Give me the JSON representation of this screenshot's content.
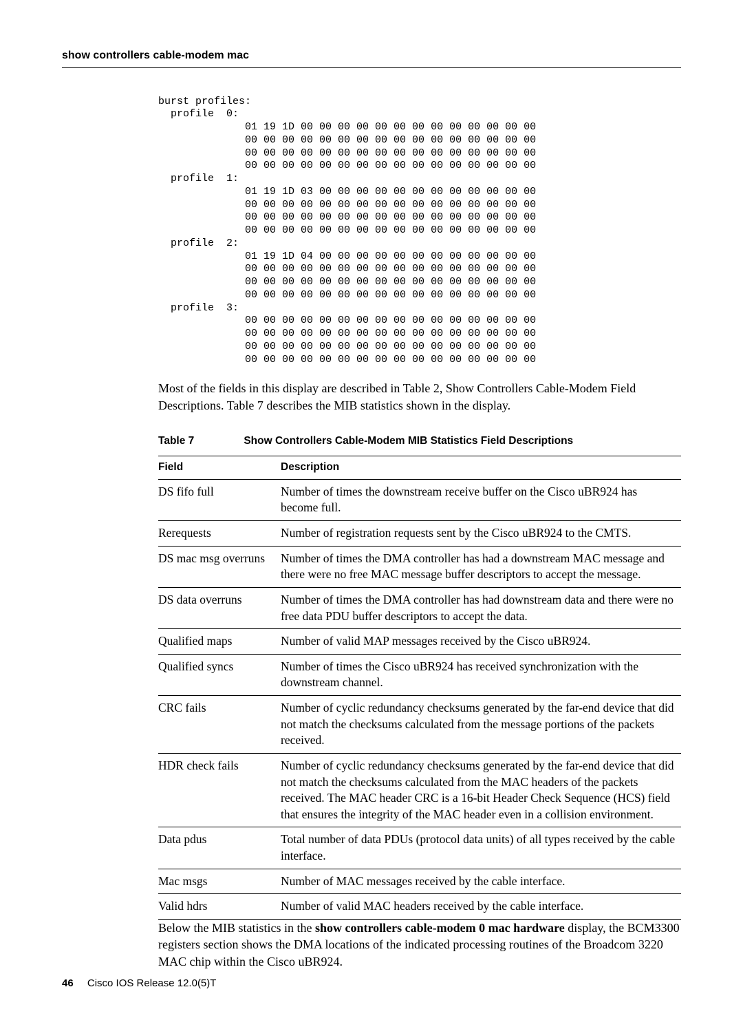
{
  "page": {
    "running_head": "show controllers cable-modem mac",
    "footer_page": "46",
    "footer_text": "Cisco IOS Release 12.0(5)T"
  },
  "hex": {
    "header": "burst profiles:",
    "profiles": [
      {
        "label": "  profile  0:",
        "lines": [
          "01 19 1D 00 00 00 00 00 00 00 00 00 00 00 00 00",
          "00 00 00 00 00 00 00 00 00 00 00 00 00 00 00 00",
          "00 00 00 00 00 00 00 00 00 00 00 00 00 00 00 00",
          "00 00 00 00 00 00 00 00 00 00 00 00 00 00 00 00"
        ]
      },
      {
        "label": "  profile  1:",
        "lines": [
          "01 19 1D 03 00 00 00 00 00 00 00 00 00 00 00 00",
          "00 00 00 00 00 00 00 00 00 00 00 00 00 00 00 00",
          "00 00 00 00 00 00 00 00 00 00 00 00 00 00 00 00",
          "00 00 00 00 00 00 00 00 00 00 00 00 00 00 00 00"
        ]
      },
      {
        "label": "  profile  2:",
        "lines": [
          "01 19 1D 04 00 00 00 00 00 00 00 00 00 00 00 00",
          "00 00 00 00 00 00 00 00 00 00 00 00 00 00 00 00",
          "00 00 00 00 00 00 00 00 00 00 00 00 00 00 00 00",
          "00 00 00 00 00 00 00 00 00 00 00 00 00 00 00 00"
        ]
      },
      {
        "label": "  profile  3:",
        "lines": [
          "00 00 00 00 00 00 00 00 00 00 00 00 00 00 00 00",
          "00 00 00 00 00 00 00 00 00 00 00 00 00 00 00 00",
          "00 00 00 00 00 00 00 00 00 00 00 00 00 00 00 00",
          "00 00 00 00 00 00 00 00 00 00 00 00 00 00 00 00"
        ]
      }
    ],
    "line_indent": "              "
  },
  "intro_para": "Most of the fields in this display are described in Table 2, Show Controllers Cable-Modem Field Descriptions. Table 7 describes the MIB statistics shown in the display.",
  "table": {
    "number": "Table 7",
    "title": "Show Controllers Cable-Modem  MIB Statistics Field Descriptions",
    "head_field": "Field",
    "head_desc": "Description",
    "rows": [
      {
        "field": "DS fifo full",
        "desc": "Number of times the downstream receive buffer on the Cisco uBR924 has become full."
      },
      {
        "field": "Rerequests",
        "desc": "Number of registration requests sent by the Cisco uBR924 to the CMTS."
      },
      {
        "field": "DS mac msg overruns",
        "desc": "Number of times the DMA controller has had a downstream MAC message and there were no free MAC message buffer descriptors to accept the message."
      },
      {
        "field": "DS data overruns",
        "desc": "Number of times the DMA controller has had downstream data and there were no free data PDU buffer descriptors to accept the data."
      },
      {
        "field": "Qualified maps",
        "desc": "Number of valid MAP messages received by the Cisco uBR924."
      },
      {
        "field": "Qualified syncs",
        "desc": "Number of times the Cisco uBR924 has received synchronization with the downstream channel."
      },
      {
        "field": "CRC fails",
        "desc": "Number of cyclic redundancy checksums generated by the far-end device that did not match the checksums calculated from the message portions of the packets received."
      },
      {
        "field": "HDR check fails",
        "desc": "Number of cyclic redundancy checksums generated by the far-end device that did not match the checksums calculated from the MAC headers of the packets received. The MAC header CRC is a 16-bit Header Check Sequence (HCS) field that ensures the integrity of the MAC header even in a collision environment."
      },
      {
        "field": "Data pdus",
        "desc": "Total number of data PDUs (protocol data units) of all types received by the cable interface."
      },
      {
        "field": "Mac msgs",
        "desc": "Number of MAC messages received by the cable interface."
      },
      {
        "field": "Valid hdrs",
        "desc": "Number of valid MAC headers received by the cable interface."
      }
    ]
  },
  "closing": {
    "prefix": "Below the MIB statistics in the ",
    "bold": "show controllers cable-modem 0 mac hardware",
    "suffix": " display, the BCM3300 registers section shows the DMA locations of the indicated processing routines of the Broadcom 3220 MAC chip within the Cisco uBR924."
  }
}
